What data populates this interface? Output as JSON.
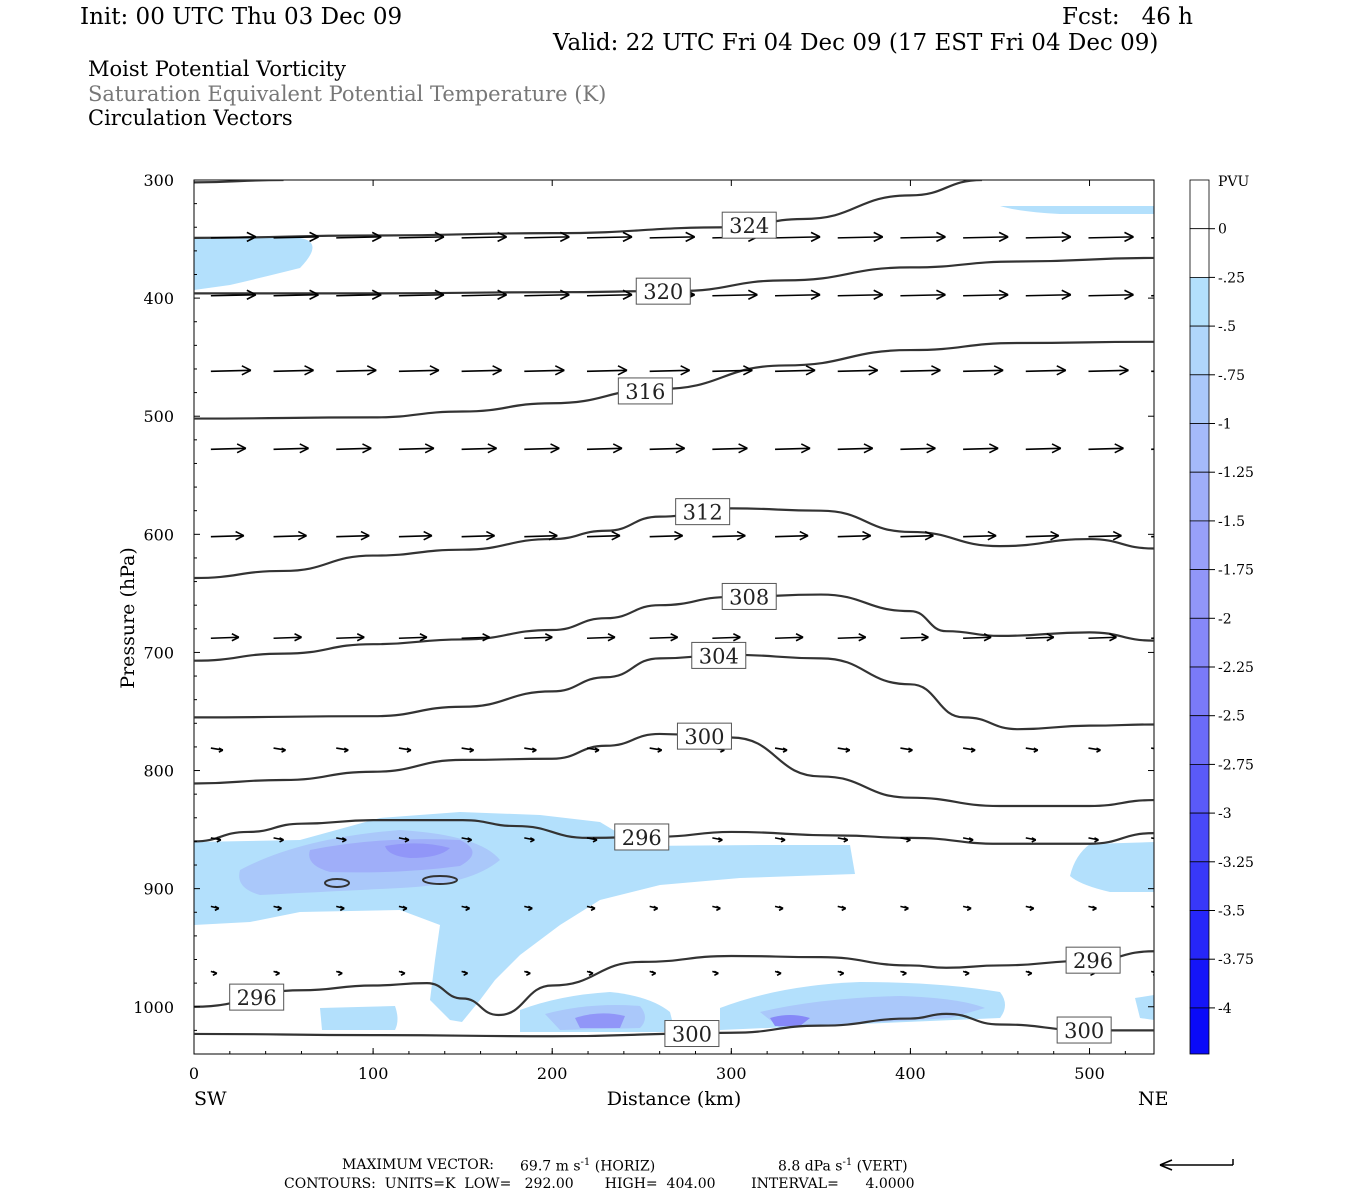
{
  "header": {
    "init": "Init: 00 UTC Thu 03 Dec 09",
    "fcst": "Fcst:   46 h",
    "valid": "Valid: 22 UTC Fri 04 Dec 09 (17 EST Fri 04 Dec 09)"
  },
  "titles": {
    "line1": "Moist Potential Vorticity",
    "line2": "Saturation Equivalent Potential Temperature (K)",
    "line3": "Circulation Vectors"
  },
  "footer": {
    "max_vector_label": "MAXIMUM VECTOR:",
    "horiz": "69.7 m s",
    "horiz_unit": "(HORIZ)",
    "vert": "8.8 dPa s",
    "vert_unit": "(VERT)",
    "exp": "-1",
    "contours": "CONTOURS:  UNITS=K  LOW=   292.00       HIGH=  404.00        INTERVAL=      4.0000"
  },
  "chart_data": {
    "type": "cross-section",
    "xlabel": "Distance (km)",
    "ylabel": "Pressure (hPa)",
    "x_end_labels": [
      "SW",
      "NE"
    ],
    "xlim": [
      0,
      536
    ],
    "ylim_hPa": [
      1040,
      300
    ],
    "xticks": [
      0,
      100,
      200,
      300,
      400,
      500
    ],
    "yticks": [
      300,
      400,
      500,
      600,
      700,
      800,
      900,
      1000
    ],
    "colorbar": {
      "title": "PVU",
      "labels": [
        "0",
        "-.25",
        "-.5",
        "-.75",
        "-1",
        "-1.25",
        "-1.5",
        "-1.75",
        "-2",
        "-2.25",
        "-2.5",
        "-2.75",
        "-3",
        "-3.25",
        "-3.5",
        "-3.75",
        "-4"
      ],
      "colors": [
        "#ffffff",
        "#ffffff",
        "#b3e0fc",
        "#b0d6fb",
        "#aac8fa",
        "#a5bafa",
        "#9faef9",
        "#98a0f9",
        "#9196f8",
        "#8688f8",
        "#7a7af8",
        "#6b6bf8",
        "#5a5af8",
        "#4949f8",
        "#3838f8",
        "#2626f8",
        "#1515f8",
        "#0a0af8"
      ]
    },
    "theta_e_contours": [
      {
        "label": "324",
        "points": [
          [
            0,
            302
          ],
          [
            50,
            300
          ]
        ]
      },
      {
        "label": "324",
        "points": [
          [
            0,
            349
          ],
          [
            100,
            347
          ],
          [
            200,
            345
          ],
          [
            300,
            340
          ],
          [
            340,
            333
          ],
          [
            400,
            313
          ],
          [
            440,
            300
          ]
        ]
      },
      {
        "label": "320",
        "points": [
          [
            0,
            396
          ],
          [
            100,
            396
          ],
          [
            200,
            395
          ],
          [
            270,
            394
          ],
          [
            330,
            385
          ],
          [
            400,
            374
          ],
          [
            460,
            369
          ],
          [
            536,
            366
          ]
        ]
      },
      {
        "label": "316",
        "points": [
          [
            0,
            502
          ],
          [
            100,
            501
          ],
          [
            150,
            496
          ],
          [
            200,
            489
          ],
          [
            260,
            477
          ],
          [
            330,
            457
          ],
          [
            400,
            444
          ],
          [
            460,
            438
          ],
          [
            536,
            437
          ]
        ]
      },
      {
        "label": "312",
        "points": [
          [
            0,
            637
          ],
          [
            50,
            631
          ],
          [
            100,
            618
          ],
          [
            150,
            613
          ],
          [
            200,
            604
          ],
          [
            230,
            597
          ],
          [
            260,
            585
          ],
          [
            300,
            578
          ],
          [
            350,
            580
          ],
          [
            400,
            598
          ],
          [
            450,
            610
          ],
          [
            500,
            604
          ],
          [
            536,
            612
          ]
        ]
      },
      {
        "label": "308",
        "points": [
          [
            0,
            707
          ],
          [
            50,
            701
          ],
          [
            100,
            693
          ],
          [
            150,
            689
          ],
          [
            200,
            681
          ],
          [
            230,
            671
          ],
          [
            260,
            660
          ],
          [
            300,
            653
          ],
          [
            350,
            651
          ],
          [
            400,
            665
          ],
          [
            420,
            682
          ],
          [
            450,
            686
          ],
          [
            500,
            683
          ],
          [
            536,
            690
          ]
        ]
      },
      {
        "label": "304",
        "points": [
          [
            0,
            755
          ],
          [
            100,
            754
          ],
          [
            150,
            746
          ],
          [
            200,
            733
          ],
          [
            230,
            721
          ],
          [
            260,
            705
          ],
          [
            300,
            702
          ],
          [
            350,
            705
          ],
          [
            400,
            727
          ],
          [
            430,
            755
          ],
          [
            460,
            765
          ],
          [
            500,
            762
          ],
          [
            536,
            761
          ]
        ]
      },
      {
        "label": "300",
        "points": [
          [
            0,
            811
          ],
          [
            50,
            808
          ],
          [
            100,
            801
          ],
          [
            150,
            791
          ],
          [
            200,
            790
          ],
          [
            230,
            779
          ],
          [
            260,
            769
          ],
          [
            300,
            772
          ],
          [
            350,
            805
          ],
          [
            400,
            823
          ],
          [
            450,
            830
          ],
          [
            500,
            830
          ],
          [
            536,
            825
          ]
        ]
      },
      {
        "label": "296",
        "points": [
          [
            0,
            860
          ],
          [
            30,
            852
          ],
          [
            60,
            845
          ],
          [
            100,
            842
          ],
          [
            150,
            842
          ],
          [
            180,
            847
          ],
          [
            220,
            857
          ],
          [
            260,
            856
          ],
          [
            300,
            852
          ],
          [
            360,
            855
          ],
          [
            400,
            857
          ],
          [
            450,
            862
          ],
          [
            500,
            862
          ],
          [
            536,
            853
          ]
        ]
      },
      {
        "label": "296",
        "points": [
          [
            0,
            1000
          ],
          [
            60,
            986
          ],
          [
            100,
            982
          ],
          [
            130,
            980
          ],
          [
            150,
            993
          ],
          [
            170,
            1007
          ],
          [
            200,
            982
          ],
          [
            250,
            962
          ],
          [
            300,
            957
          ],
          [
            350,
            958
          ],
          [
            400,
            965
          ],
          [
            420,
            967
          ],
          [
            450,
            965
          ],
          [
            500,
            961
          ],
          [
            536,
            953
          ]
        ]
      },
      {
        "label": "300",
        "points": [
          [
            0,
            1023
          ],
          [
            100,
            1024
          ],
          [
            200,
            1025
          ],
          [
            300,
            1022
          ],
          [
            350,
            1016
          ],
          [
            400,
            1010
          ],
          [
            420,
            1006
          ],
          [
            450,
            1015
          ],
          [
            500,
            1020
          ],
          [
            536,
            1020
          ]
        ]
      }
    ],
    "vector_rows_hPa": [
      349,
      398,
      462,
      528,
      602,
      688,
      781,
      857,
      915,
      970
    ],
    "vector_lengths_px": [
      [
        45,
        45,
        45,
        45,
        45,
        45,
        45,
        45,
        45,
        45,
        45,
        45,
        45,
        45,
        45,
        45
      ],
      [
        45,
        45,
        45,
        45,
        45,
        45,
        45,
        45,
        45,
        45,
        45,
        45,
        45,
        45,
        45,
        45
      ],
      [
        40,
        40,
        40,
        40,
        40,
        40,
        40,
        40,
        40,
        40,
        40,
        40,
        40,
        40,
        40,
        40
      ],
      [
        35,
        35,
        35,
        35,
        35,
        35,
        35,
        35,
        35,
        35,
        35,
        35,
        35,
        35,
        35,
        35
      ],
      [
        33,
        33,
        33,
        33,
        33,
        33,
        33,
        33,
        33,
        33,
        33,
        33,
        33,
        33,
        33,
        33
      ],
      [
        28,
        28,
        28,
        28,
        28,
        28,
        28,
        28,
        28,
        28,
        28,
        28,
        28,
        28,
        28,
        28
      ],
      [
        12,
        12,
        12,
        12,
        12,
        12,
        12,
        12,
        12,
        12,
        12,
        12,
        12,
        12,
        12,
        12
      ],
      [
        10,
        10,
        10,
        10,
        10,
        10,
        10,
        10,
        10,
        10,
        10,
        10,
        10,
        10,
        10,
        10
      ],
      [
        8,
        8,
        8,
        8,
        8,
        8,
        8,
        8,
        8,
        8,
        8,
        8,
        8,
        8,
        8,
        8
      ],
      [
        6,
        6,
        6,
        6,
        6,
        6,
        6,
        6,
        6,
        6,
        6,
        6,
        6,
        6,
        6,
        6
      ]
    ]
  }
}
